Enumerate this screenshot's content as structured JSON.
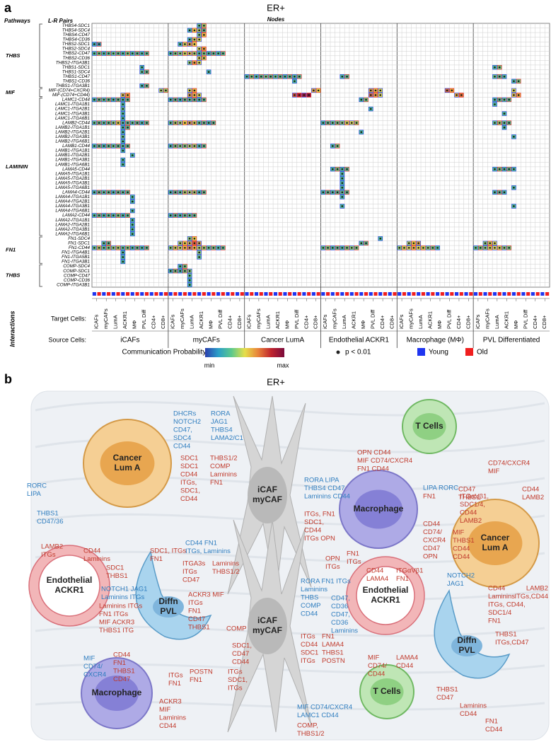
{
  "panel_a": {
    "label": "a",
    "title": "ER+",
    "col_header_pathways": "Pathways",
    "col_header_pairs": "L-R Pairs",
    "col_header_nodes": "Nodes",
    "target_label": "Target Cells:",
    "source_label": "Source Cells:",
    "interactions_label": "Interactions"
  },
  "heatmap": {
    "pathways": [
      {
        "name": "THBS",
        "pairs": [
          "THBS4-SDC1",
          "THBS4-SDC4",
          "THBS4-CD47",
          "THBS4-CD36",
          "THBS2-SDC1",
          "THBS2-SDC4",
          "THBS2-CD47",
          "THBS2-CD36",
          "THBS2-ITGA3B1",
          "THBS1-SDC1",
          "THBS1-SDC4",
          "THBS1-CD47",
          "THBS1-CD36",
          "THBS1-ITGA3B1"
        ]
      },
      {
        "name": "MIF",
        "pairs": [
          "MIF-(CD74+CXCR4)",
          "MIF-(CD74+CD44)"
        ]
      },
      {
        "name": "LAMININ",
        "pairs": [
          "LAMC1-CD44",
          "LAMC1-ITGA1B1",
          "LAMC1-ITGA2B1",
          "LAMC1-ITGA3B1",
          "LAMC1-ITGA6B1",
          "LAMB2-CD44",
          "LAMB2-ITGA1B1",
          "LAMB2-ITGA2B1",
          "LAMB2-ITGA3B1",
          "LAMB2-ITGA6B1",
          "LAMB1-CD44",
          "LAMB1-ITGA1B1",
          "LAMB1-ITGA2B1",
          "LAMB1-ITGA3B1",
          "LAMB1-ITGA6B1",
          "LAMA5-CD44",
          "LAMA5-ITGA1B1",
          "LAMA5-ITGA2B1",
          "LAMA5-ITGA3B1",
          "LAMA5-ITGA6B1",
          "LAMA4-CD44",
          "LAMA4-ITGA1B1",
          "LAMA4-ITGA2B1",
          "LAMA4-ITGA3B1",
          "LAMA4-ITGA6B1",
          "LAMA2-CD44",
          "LAMA2-ITGA1B1",
          "LAMA2-ITGA2B1",
          "LAMA2-ITGA3B1",
          "LAMA2-ITGA6B1"
        ]
      },
      {
        "name": "FN1",
        "pairs": [
          "FN1-SDC4",
          "FN1-SDC1",
          "FN1-CD44",
          "FN1-ITGA4B1",
          "FN1-ITGA5B1",
          "FN1-ITGA3B1"
        ]
      },
      {
        "name": "THBS",
        "pairs": [
          "COMP-SDC4",
          "COMP-SDC1",
          "COMP-CD47",
          "COMP-CD36",
          "COMP-ITGA3B1"
        ]
      }
    ],
    "sources": [
      "iCAFs",
      "myCAFs",
      "Cancer LumA",
      "Endothelial ACKR1",
      "Macrophage (MΦ)",
      "PVL Differentiated"
    ],
    "targets": [
      "iCAFs",
      "myCAFs",
      "LumA",
      "ACKR1",
      "MΦ",
      "PVL Diff",
      "CD4+",
      "CD8+"
    ],
    "groups": [
      {
        "name": "Young",
        "color": "#1f35f0"
      },
      {
        "name": "Old",
        "color": "#f01f1f"
      }
    ],
    "value_range": [
      0,
      1
    ],
    "colormap": [
      "#2b3fae",
      "#2b9fc8",
      "#5cc98c",
      "#e6df4a",
      "#e8843a",
      "#c0242e",
      "#7a0a3c"
    ],
    "cells": [
      [
        0,
        22,
        [
          0.35,
          0.4
        ]
      ],
      [
        1,
        20,
        [
          0.3,
          0.5,
          0.45,
          0.3
        ]
      ],
      [
        2,
        22,
        [
          0.4,
          0.55
        ]
      ],
      [
        3,
        20,
        [
          0.3,
          0.45,
          0.5
        ]
      ],
      [
        4,
        0,
        [
          0.25,
          0.2
        ]
      ],
      [
        4,
        18,
        [
          0.3,
          0.45,
          0.6,
          0.5
        ]
      ],
      [
        5,
        22,
        [
          0.5,
          0.6
        ]
      ],
      [
        6,
        0,
        [
          0.3,
          0.35,
          0.3,
          0.3,
          0.35,
          0.3,
          0.3,
          0.35,
          0.3,
          0.3,
          0.3,
          0.3
        ]
      ],
      [
        6,
        16,
        [
          0.3,
          0.35,
          0.4,
          0.45,
          0.55,
          0.4,
          0.3,
          0.35,
          0.3,
          0.3,
          0.3,
          0.3
        ]
      ],
      [
        7,
        22,
        [
          0.5,
          0.45
        ]
      ],
      [
        8,
        20,
        [
          0.4,
          0.6,
          0.5
        ]
      ],
      [
        9,
        10,
        [
          0.3
        ]
      ],
      [
        9,
        84,
        [
          0.3,
          0.35
        ]
      ],
      [
        10,
        10,
        [
          0.35,
          0.3
        ]
      ],
      [
        10,
        24,
        [
          0.3
        ]
      ],
      [
        11,
        32,
        [
          0.3,
          0.35,
          0.3,
          0.3,
          0.4,
          0.3,
          0.35,
          0.3,
          0.3,
          0.3,
          0.3,
          0.3
        ]
      ],
      [
        11,
        52,
        [
          0.3,
          0.3
        ]
      ],
      [
        11,
        84,
        [
          0.35,
          0.3,
          0.3
        ]
      ],
      [
        12,
        42,
        [
          0.3
        ]
      ],
      [
        12,
        88,
        [
          0.3,
          0.35
        ]
      ],
      [
        13,
        10,
        [
          0.3,
          0.3
        ]
      ],
      [
        14,
        14,
        [
          0.45,
          0.4
        ]
      ],
      [
        14,
        20,
        [
          0.5,
          0.55
        ]
      ],
      [
        14,
        46,
        [
          0.6,
          0.5
        ]
      ],
      [
        14,
        58,
        [
          0.6,
          0.55,
          0.5
        ]
      ],
      [
        14,
        74,
        [
          0.7,
          0.6
        ]
      ],
      [
        14,
        88,
        [
          0.5
        ]
      ],
      [
        15,
        6,
        [
          0.55,
          0.6
        ]
      ],
      [
        15,
        20,
        [
          0.6,
          0.55,
          0.5
        ]
      ],
      [
        15,
        42,
        [
          0.75,
          0.85,
          0.9,
          0.95
        ]
      ],
      [
        15,
        58,
        [
          0.7,
          0.6,
          0.5
        ]
      ],
      [
        15,
        76,
        [
          0.6,
          0.7
        ]
      ],
      [
        15,
        88,
        [
          0.55,
          0.6
        ]
      ],
      [
        16,
        0,
        [
          0.3,
          0.3,
          0.35,
          0.3,
          0.3,
          0.3,
          0.3,
          0.3
        ]
      ],
      [
        16,
        16,
        [
          0.3,
          0.3,
          0.3,
          0.3,
          0.35,
          0.3,
          0.3,
          0.3
        ]
      ],
      [
        16,
        56,
        [
          0.3,
          0.35
        ]
      ],
      [
        16,
        84,
        [
          0.3,
          0.3,
          0.35,
          0.3
        ]
      ],
      [
        17,
        6,
        [
          0.3
        ]
      ],
      [
        17,
        84,
        [
          0.3
        ]
      ],
      [
        18,
        6,
        [
          0.35
        ]
      ],
      [
        18,
        58,
        [
          0.3
        ]
      ],
      [
        19,
        6,
        [
          0.3
        ]
      ],
      [
        19,
        86,
        [
          0.3
        ]
      ],
      [
        20,
        6,
        [
          0.3
        ]
      ],
      [
        21,
        0,
        [
          0.35,
          0.3,
          0.35,
          0.3,
          0.4,
          0.45,
          0.3,
          0.3,
          0.35,
          0.3,
          0.3,
          0.3
        ]
      ],
      [
        21,
        16,
        [
          0.35,
          0.4,
          0.45,
          0.5,
          0.6,
          0.45,
          0.35,
          0.3,
          0.3,
          0.3
        ]
      ],
      [
        21,
        48,
        [
          0.3,
          0.3,
          0.35,
          0.35,
          0.4,
          0.45,
          0.5,
          0.4
        ]
      ],
      [
        21,
        84,
        [
          0.35,
          0.4,
          0.35,
          0.3
        ]
      ],
      [
        22,
        6,
        [
          0.3,
          0.3
        ]
      ],
      [
        22,
        86,
        [
          0.3
        ]
      ],
      [
        23,
        6,
        [
          0.3
        ]
      ],
      [
        23,
        56,
        [
          0.3
        ]
      ],
      [
        24,
        6,
        [
          0.35
        ]
      ],
      [
        24,
        88,
        [
          0.3
        ]
      ],
      [
        25,
        6,
        [
          0.3
        ]
      ],
      [
        26,
        0,
        [
          0.3,
          0.3,
          0.3,
          0.3,
          0.35,
          0.3,
          0.3,
          0.3
        ]
      ],
      [
        26,
        16,
        [
          0.3,
          0.35,
          0.4,
          0.35,
          0.45,
          0.4,
          0.3,
          0.3
        ]
      ],
      [
        26,
        50,
        [
          0.3,
          0.35
        ]
      ],
      [
        27,
        6,
        [
          0.3
        ]
      ],
      [
        28,
        8,
        [
          0.3
        ]
      ],
      [
        29,
        6,
        [
          0.3
        ]
      ],
      [
        30,
        6,
        [
          0.3
        ]
      ],
      [
        31,
        50,
        [
          0.3,
          0.35,
          0.3,
          0.3
        ]
      ],
      [
        31,
        84,
        [
          0.3,
          0.35,
          0.3,
          0.3,
          0.3
        ]
      ],
      [
        32,
        52,
        [
          0.3
        ]
      ],
      [
        33,
        52,
        [
          0.3
        ]
      ],
      [
        34,
        52,
        [
          0.3
        ]
      ],
      [
        35,
        52,
        [
          0.3
        ]
      ],
      [
        35,
        88,
        [
          0.3
        ]
      ],
      [
        36,
        0,
        [
          0.3,
          0.3,
          0.35,
          0.3,
          0.3,
          0.3,
          0.35,
          0.3
        ]
      ],
      [
        36,
        16,
        [
          0.3,
          0.3,
          0.35,
          0.4,
          0.45,
          0.4,
          0.3,
          0.3
        ]
      ],
      [
        36,
        48,
        [
          0.3,
          0.3,
          0.3,
          0.3,
          0.35,
          0.3
        ]
      ],
      [
        36,
        84,
        [
          0.3,
          0.3,
          0.3
        ]
      ],
      [
        37,
        8,
        [
          0.3
        ]
      ],
      [
        37,
        52,
        [
          0.3
        ]
      ],
      [
        38,
        8,
        [
          0.3
        ]
      ],
      [
        39,
        52,
        [
          0.3
        ]
      ],
      [
        39,
        88,
        [
          0.3
        ]
      ],
      [
        40,
        8,
        [
          0.3
        ]
      ],
      [
        41,
        0,
        [
          0.3,
          0.3,
          0.3,
          0.3,
          0.3,
          0.35,
          0.3,
          0.3
        ]
      ],
      [
        41,
        16,
        [
          0.3,
          0.3,
          0.3,
          0.3,
          0.35,
          0.3
        ]
      ],
      [
        42,
        8,
        [
          0.3
        ]
      ],
      [
        43,
        8,
        [
          0.3
        ]
      ],
      [
        44,
        8,
        [
          0.3
        ]
      ],
      [
        45,
        8,
        [
          0.3
        ]
      ],
      [
        46,
        20,
        [
          0.4,
          0.5
        ]
      ],
      [
        46,
        60,
        [
          0.3
        ]
      ],
      [
        47,
        2,
        [
          0.35,
          0.3
        ]
      ],
      [
        47,
        18,
        [
          0.45,
          0.5,
          0.55,
          0.7,
          0.6
        ]
      ],
      [
        47,
        56,
        [
          0.35,
          0.3
        ]
      ],
      [
        47,
        66,
        [
          0.45,
          0.5,
          0.6
        ]
      ],
      [
        47,
        82,
        [
          0.4,
          0.45,
          0.5
        ]
      ],
      [
        48,
        0,
        [
          0.35,
          0.4,
          0.35,
          0.35,
          0.4,
          0.4,
          0.35,
          0.35,
          0.3,
          0.3,
          0.3,
          0.3
        ]
      ],
      [
        48,
        16,
        [
          0.4,
          0.45,
          0.5,
          0.55,
          0.65,
          0.55,
          0.45,
          0.4,
          0.35,
          0.35,
          0.3,
          0.3
        ]
      ],
      [
        48,
        48,
        [
          0.35,
          0.35,
          0.3,
          0.3,
          0.3,
          0.35,
          0.4,
          0.35
        ]
      ],
      [
        48,
        64,
        [
          0.4,
          0.45,
          0.5,
          0.55,
          0.5,
          0.45,
          0.4,
          0.35,
          0.3
        ]
      ],
      [
        48,
        80,
        [
          0.35,
          0.35,
          0.4,
          0.45,
          0.5,
          0.45,
          0.4,
          0.35
        ]
      ],
      [
        49,
        6,
        [
          0.3
        ]
      ],
      [
        49,
        22,
        [
          0.4
        ]
      ],
      [
        50,
        6,
        [
          0.3
        ]
      ],
      [
        50,
        22,
        [
          0.35
        ]
      ],
      [
        51,
        6,
        [
          0.3
        ]
      ],
      [
        52,
        18,
        [
          0.3,
          0.35
        ]
      ],
      [
        53,
        16,
        [
          0.3,
          0.35,
          0.3,
          0.35,
          0.4
        ]
      ],
      [
        54,
        20,
        [
          0.35
        ]
      ],
      [
        55,
        20,
        [
          0.3
        ]
      ],
      [
        56,
        20,
        [
          0.3
        ]
      ]
    ]
  },
  "legend": {
    "title": "Communication Probability",
    "min": "min",
    "max": "max",
    "significance": "p < 0.01"
  },
  "panel_b": {
    "label": "b",
    "title": "ER+"
  },
  "diagram": {
    "nodes": [
      [
        "Cancer",
        "Lum A"
      ],
      [
        "iCAF",
        "myCAF"
      ],
      [
        "iCAF",
        "myCAF"
      ],
      [
        "Macrophage"
      ],
      [
        "T Cells"
      ],
      [
        "Cancer",
        "Lum A"
      ],
      [
        "Endothelial",
        "ACKR1"
      ],
      [
        "Diffn",
        "PVL"
      ],
      [
        "Macrophage"
      ],
      [
        "Endothelial",
        "ACKR1"
      ],
      [
        "Diffn",
        "PVL"
      ],
      [
        "T Cells"
      ]
    ],
    "labels": [
      [
        "DHCRs",
        "NOTCH2",
        "CD47,",
        "SDC4",
        "CD44"
      ],
      [
        "RORA",
        "JAG1",
        "THBS4",
        "LAMA2/C1"
      ],
      [
        "SDC1",
        "SDC1",
        "CD44",
        "ITGs,",
        "SDC1,",
        "CD44"
      ],
      [
        "THBS1/2",
        "COMP",
        "Laminins",
        "FN1"
      ],
      [
        "RORC",
        "LIPA"
      ],
      [
        "THBS1",
        "CD47/36"
      ],
      [
        "LAMB2",
        "ITGs"
      ],
      [
        "CD44",
        "Laminins"
      ],
      [
        "SDC1",
        "THBS1"
      ],
      [
        "SDC1, ITGs",
        "FN1"
      ],
      [
        "RORA  LIPA",
        "THBS4  CD47",
        "Laminins  CD44"
      ],
      [
        "ITGs, FN1",
        "SDC1,",
        "CD44",
        "ITGs   OPN"
      ],
      [
        "OPN   CD44",
        "MIF  CD74/CXCR4",
        "FN1  CD44"
      ],
      [
        "CD74/CXCR4",
        "MIF"
      ],
      [
        "CD47",
        "THBS1"
      ],
      [
        "CD44",
        "LAMB2"
      ],
      [
        "LIPA  RORC"
      ],
      [
        "FN1"
      ],
      [
        "ITGαVβ1,",
        "SDC1/4,",
        "CD44",
        "LAMB2"
      ],
      [
        "CD44",
        "CD74/",
        "CXCR4",
        "CD47",
        "OPN"
      ],
      [
        "MIF",
        "THBS1",
        "CD44",
        "CD44"
      ],
      [
        "FN1",
        "ITGs"
      ],
      [
        "OPN",
        "ITGs"
      ],
      [
        "CD44",
        "LAMA4"
      ],
      [
        "ITGαVβ1",
        "FN1"
      ],
      [
        "NOTCH2",
        "JAG1"
      ],
      [
        "CD44",
        "Laminins",
        "ITGs, CD44,",
        "SDC1/4",
        "FN1"
      ],
      [
        "LAMB2",
        "ITGs,CD44"
      ],
      [
        "THBS1",
        "ITGs,CD47"
      ],
      [
        "RORA  FN1  ITGs",
        "Laminins",
        "THBS",
        "COMP",
        "CD44"
      ],
      [
        "CD47,",
        "CD36",
        "CD47,",
        "CD36",
        "Laminins"
      ],
      [
        "ITGs",
        "CD44",
        "SDC1",
        "ITGs"
      ],
      [
        "FN1",
        "LAMA4",
        "THBS1",
        "POSTN"
      ],
      [
        "CD44   FN1",
        "ITGs,  Laminins"
      ],
      [
        "ITGA3s",
        "ITGs",
        "CD47"
      ],
      [
        "Laminins",
        "THBS1/2"
      ],
      [
        "ACKR3  MIF",
        "ITGs",
        "FN1",
        "CD47",
        "THBS1"
      ],
      [
        "COMP"
      ],
      [
        "SDC1,",
        "CD47",
        "CD44"
      ],
      [
        "POSTN",
        "FN1"
      ],
      [
        "ITGs",
        "SDC1,",
        "ITGs"
      ],
      [
        "NOTCH1  JAG1",
        "Laminins  ITGs"
      ],
      [
        "Laminins  ITGs",
        "FN1  ITGs",
        "MIF  ACKR3",
        "THBS1  ITG"
      ],
      [
        "MIF",
        "CD74/",
        "CXCR4"
      ],
      [
        "CD44",
        "FN1",
        "THBS1",
        "CD47"
      ],
      [
        "ITGs",
        "FN1"
      ],
      [
        "ACKR3",
        "MIF",
        "Laminins",
        "CD44"
      ],
      [
        "MIF  CD74/CXCR4",
        "LAMC1  CD44"
      ],
      [
        "COMP,",
        "THBS1/2"
      ],
      [
        "MIF",
        "CD74/",
        "CD44"
      ],
      [
        "LAMA4",
        "CD44"
      ],
      [
        "THBS1",
        "CD47"
      ],
      [
        "Laminins",
        "CD44"
      ],
      [
        "FN1",
        "CD44"
      ]
    ]
  }
}
